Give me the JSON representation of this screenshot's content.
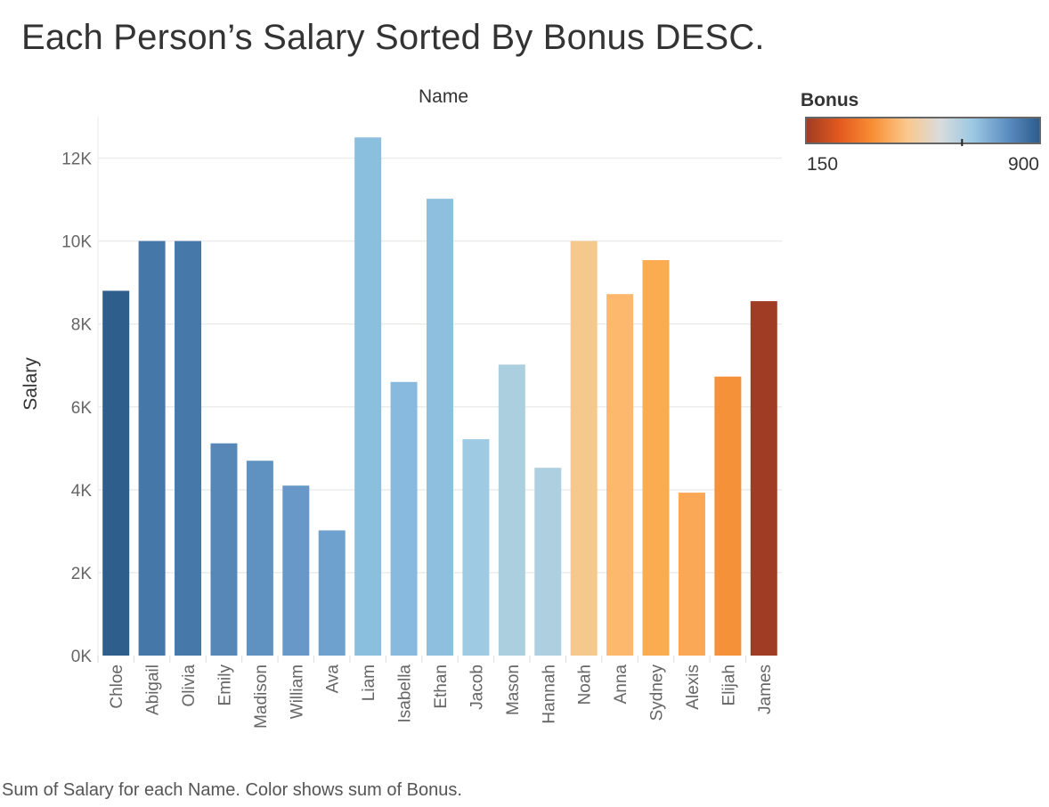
{
  "chart_data": {
    "type": "bar",
    "title": "Each Person’s Salary Sorted By Bonus DESC.",
    "column_header": "Name",
    "xlabel": "",
    "ylabel": "Salary",
    "ylim": [
      0,
      13000
    ],
    "yticks": [
      0,
      2000,
      4000,
      6000,
      8000,
      10000,
      12000
    ],
    "ytick_labels": [
      "0K",
      "2K",
      "4K",
      "6K",
      "8K",
      "10K",
      "12K"
    ],
    "grid": true,
    "categories": [
      "Chloe",
      "Abigail",
      "Olivia",
      "Emily",
      "Madison",
      "William",
      "Ava",
      "Liam",
      "Isabella",
      "Ethan",
      "Jacob",
      "Mason",
      "Hannah",
      "Noah",
      "Anna",
      "Sydney",
      "Alexis",
      "Elijah",
      "James"
    ],
    "values": [
      8800,
      10000,
      10000,
      5120,
      4700,
      4100,
      3020,
      12500,
      6600,
      11020,
      5220,
      7020,
      4530,
      10000,
      8720,
      9540,
      3930,
      6730,
      8550
    ],
    "bonus": [
      900,
      860,
      850,
      820,
      790,
      760,
      730,
      690,
      670,
      650,
      620,
      590,
      580,
      520,
      480,
      450,
      400,
      330,
      150
    ],
    "bar_colors": [
      "#2e5f8c",
      "#4577a8",
      "#4679aa",
      "#5687b7",
      "#5f92c1",
      "#6798c7",
      "#6fa1cf",
      "#8abfde",
      "#87bade",
      "#8ebfdf",
      "#9ecbe3",
      "#accfe0",
      "#aecfe0",
      "#f5c88c",
      "#fdb86d",
      "#fbab50",
      "#fba856",
      "#f59139",
      "#a03c23"
    ],
    "legend": {
      "title": "Bonus",
      "min_label": "150",
      "max_label": "900",
      "min_value": 150,
      "max_value": 900,
      "midpoint_value": 650,
      "placement": "top-right",
      "gradient_stops": [
        "#9e3d22",
        "#e3591e",
        "#f88f35",
        "#fbc78a",
        "#d9dcdc",
        "#9ac8e3",
        "#5e8fc2",
        "#2c5b8c"
      ]
    },
    "caption": "Sum of Salary for each Name.  Color shows sum of Bonus."
  }
}
